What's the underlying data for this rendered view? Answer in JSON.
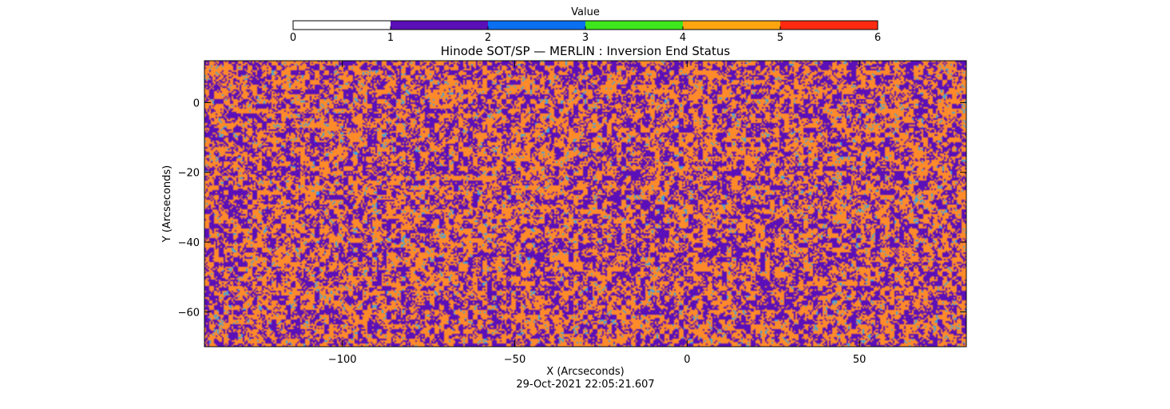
{
  "chart_data": {
    "type": "heatmap",
    "title": "Hinode SOT/SP — MERLIN : Inversion End Status",
    "xlabel": "X (Arcseconds)",
    "ylabel": "Y (Arcseconds)",
    "timestamp": "29-Oct-2021 22:05:21.607",
    "xlim": [
      -140,
      81
    ],
    "ylim": [
      -70,
      12
    ],
    "xticks": [
      -100,
      -50,
      0,
      50
    ],
    "xtick_labels": [
      "−100",
      "−50",
      "0",
      "50"
    ],
    "yticks": [
      0,
      -20,
      -40,
      -60
    ],
    "ytick_labels": [
      "0",
      "−20",
      "−40",
      "−60"
    ],
    "colorbar": {
      "label": "Value",
      "range": [
        0,
        6
      ],
      "ticks": [
        0,
        1,
        2,
        3,
        4,
        5,
        6
      ],
      "tick_labels": [
        "0",
        "1",
        "2",
        "3",
        "4",
        "5",
        "6"
      ],
      "bins": [
        {
          "from": 0,
          "to": 1,
          "color": "#ffffff"
        },
        {
          "from": 1,
          "to": 2,
          "color": "#5b0fb8"
        },
        {
          "from": 2,
          "to": 3,
          "color": "#0a6ff0"
        },
        {
          "from": 3,
          "to": 4,
          "color": "#3ee61c"
        },
        {
          "from": 4,
          "to": 5,
          "color": "#ffa510"
        },
        {
          "from": 5,
          "to": 6,
          "color": "#ff2a10"
        }
      ]
    },
    "value_distribution": [
      {
        "value": 1,
        "share": 0.46,
        "color": "#5b0fb8"
      },
      {
        "value": 4,
        "share": 0.42,
        "color": "#ff8a2a"
      },
      {
        "value": 2,
        "share": 0.12,
        "color": "#3aa6e6"
      }
    ]
  }
}
